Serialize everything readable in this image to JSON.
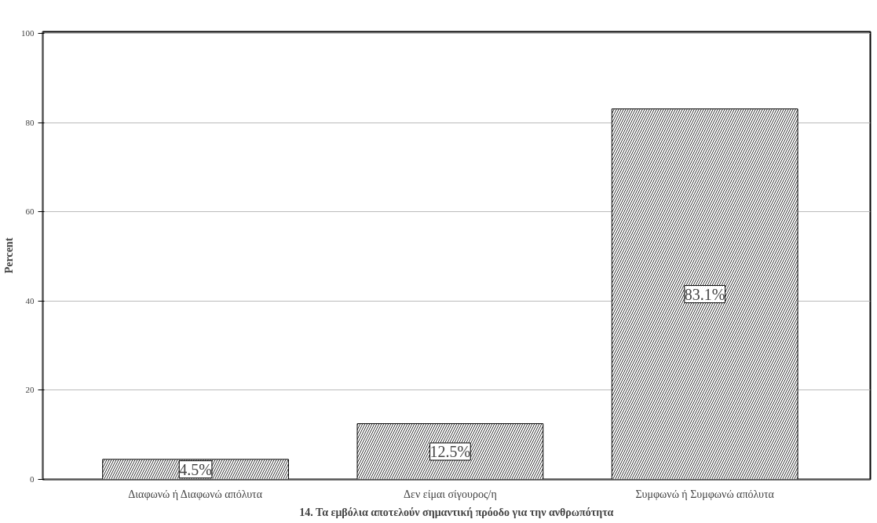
{
  "chart_data": {
    "type": "bar",
    "xlabel": "14. Τα εμβόλια αποτελούν σημαντική πρόοδο για την ανθρωπότητα",
    "ylabel": "Percent",
    "categories": [
      "Διαφωνώ ή Διαφωνώ απόλυτα",
      "Δεν είμαι σίγουρος/η",
      "Συμφωνώ ή Συμφωνώ απόλυτα"
    ],
    "values": [
      4.5,
      12.5,
      83.1
    ],
    "value_labels": [
      "4.5%",
      "12.5%",
      "83.1%"
    ],
    "color": "#ffffff",
    "ylim": [
      0,
      100.4
    ],
    "yticks": [
      0,
      20,
      40,
      60,
      80,
      100
    ],
    "grid": "y"
  }
}
